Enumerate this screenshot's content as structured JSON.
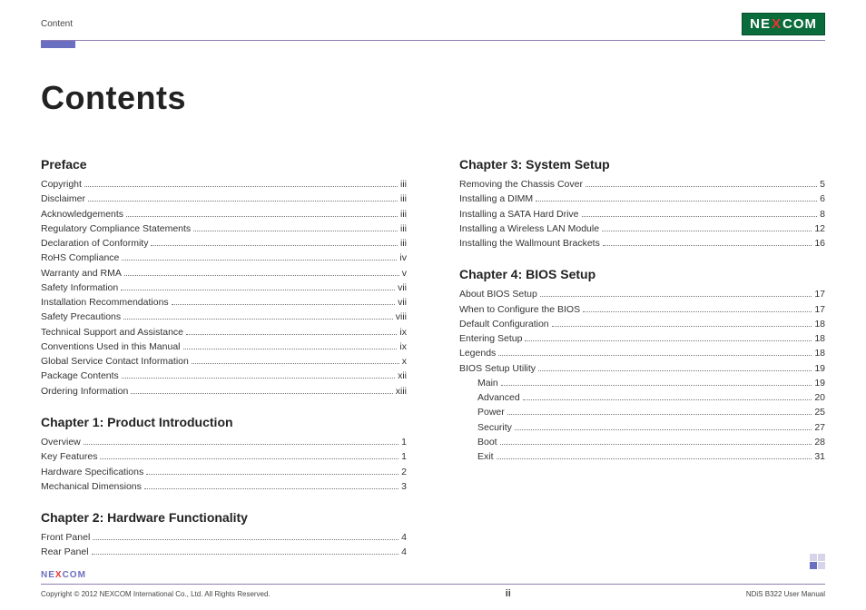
{
  "header": {
    "label": "Content"
  },
  "logo": {
    "text_left": "NE",
    "text_x": "X",
    "text_right": "COM"
  },
  "title": "Contents",
  "colors": {
    "accent": "#6a6fc1",
    "rule": "#8f7db0",
    "logo_bg": "#0a6c3a",
    "logo_x": "#e33",
    "text": "#333333"
  },
  "sections_left": [
    {
      "heading": "Preface",
      "items": [
        {
          "label": "Copyright",
          "page": "iii",
          "indent": 0
        },
        {
          "label": "Disclaimer",
          "page": "iii",
          "indent": 0
        },
        {
          "label": "Acknowledgements",
          "page": "iii",
          "indent": 0
        },
        {
          "label": "Regulatory Compliance Statements",
          "page": "iii",
          "indent": 0
        },
        {
          "label": "Declaration of Conformity",
          "page": "iii",
          "indent": 0
        },
        {
          "label": "RoHS Compliance",
          "page": "iv",
          "indent": 0
        },
        {
          "label": "Warranty and RMA",
          "page": "v",
          "indent": 0
        },
        {
          "label": "Safety Information",
          "page": "vii",
          "indent": 0
        },
        {
          "label": "Installation Recommendations",
          "page": "vii",
          "indent": 0
        },
        {
          "label": "Safety Precautions",
          "page": "viii",
          "indent": 0
        },
        {
          "label": "Technical Support and Assistance",
          "page": "ix",
          "indent": 0
        },
        {
          "label": "Conventions Used in this Manual",
          "page": "ix",
          "indent": 0
        },
        {
          "label": "Global Service Contact Information",
          "page": "x",
          "indent": 0
        },
        {
          "label": "Package Contents",
          "page": "xii",
          "indent": 0
        },
        {
          "label": "Ordering Information",
          "page": "xiii",
          "indent": 0
        }
      ]
    },
    {
      "heading": "Chapter 1: Product Introduction",
      "items": [
        {
          "label": "Overview",
          "page": "1",
          "indent": 0
        },
        {
          "label": "Key Features",
          "page": "1",
          "indent": 0
        },
        {
          "label": "Hardware Specifications",
          "page": "2",
          "indent": 0
        },
        {
          "label": "Mechanical Dimensions",
          "page": "3",
          "indent": 0
        }
      ]
    },
    {
      "heading": "Chapter 2: Hardware Functionality",
      "items": [
        {
          "label": "Front Panel",
          "page": "4",
          "indent": 0
        },
        {
          "label": "Rear Panel",
          "page": "4",
          "indent": 0
        }
      ]
    }
  ],
  "sections_right": [
    {
      "heading": "Chapter 3: System Setup",
      "items": [
        {
          "label": "Removing the Chassis Cover",
          "page": "5",
          "indent": 0
        },
        {
          "label": "Installing a DIMM",
          "page": "6",
          "indent": 0
        },
        {
          "label": "Installing a SATA Hard Drive",
          "page": "8",
          "indent": 0
        },
        {
          "label": "Installing a Wireless LAN Module",
          "page": "12",
          "indent": 0
        },
        {
          "label": "Installing the Wallmount Brackets",
          "page": "16",
          "indent": 0
        }
      ]
    },
    {
      "heading": "Chapter 4: BIOS Setup",
      "items": [
        {
          "label": "About BIOS Setup",
          "page": "17",
          "indent": 0
        },
        {
          "label": "When to Configure the BIOS",
          "page": "17",
          "indent": 0
        },
        {
          "label": "Default Configuration",
          "page": "18",
          "indent": 0
        },
        {
          "label": "Entering Setup",
          "page": "18",
          "indent": 0
        },
        {
          "label": "Legends",
          "page": "18",
          "indent": 0
        },
        {
          "label": "BIOS Setup Utility",
          "page": "19",
          "indent": 0
        },
        {
          "label": "Main",
          "page": "19",
          "indent": 1
        },
        {
          "label": "Advanced",
          "page": "20",
          "indent": 1
        },
        {
          "label": "Power",
          "page": "25",
          "indent": 1
        },
        {
          "label": "Security",
          "page": "27",
          "indent": 1
        },
        {
          "label": "Boot",
          "page": "28",
          "indent": 1
        },
        {
          "label": "Exit",
          "page": "31",
          "indent": 1
        }
      ]
    }
  ],
  "footer": {
    "copyright": "Copyright © 2012 NEXCOM International Co., Ltd. All Rights Reserved.",
    "page_num": "ii",
    "doc": "NDiS B322 User Manual"
  }
}
